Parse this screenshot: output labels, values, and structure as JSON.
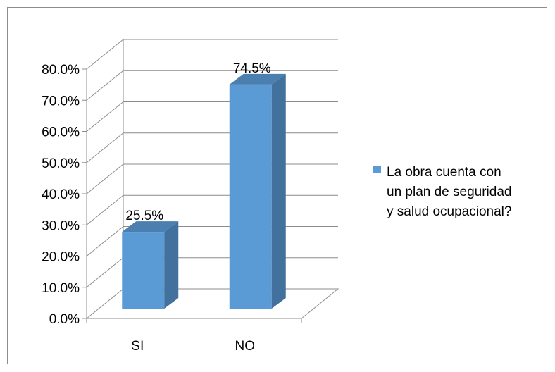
{
  "chart_data": {
    "type": "bar",
    "categories": [
      "SI",
      "NO"
    ],
    "series": [
      {
        "name": "La obra cuenta con un plan de seguridad y salud ocupacional?",
        "values": [
          25.5,
          74.5
        ],
        "color": "#5b9bd5"
      }
    ],
    "data_labels": [
      "25.5%",
      "74.5%"
    ],
    "ylim": [
      0,
      80
    ],
    "yticks": [
      "0.0%",
      "10.0%",
      "20.0%",
      "30.0%",
      "40.0%",
      "50.0%",
      "60.0%",
      "70.0%",
      "80.0%"
    ],
    "grid": true,
    "legend": {
      "position": "right",
      "lines": [
        "La obra cuenta con",
        "un plan de seguridad",
        "y salud ocupacional?"
      ]
    }
  }
}
